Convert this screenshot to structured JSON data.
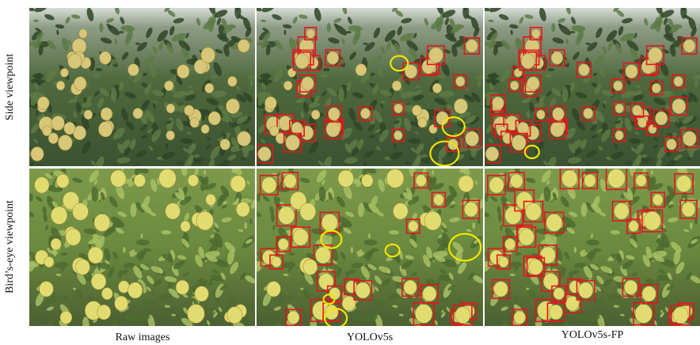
{
  "rows": [
    {
      "label": "Side viewpoint"
    },
    {
      "label": "Bird’s-eye viewpoint"
    }
  ],
  "columns": [
    {
      "label": "Raw images"
    },
    {
      "label": "YOLOv5s"
    },
    {
      "label": "YOLOv5s-FP"
    }
  ]
}
